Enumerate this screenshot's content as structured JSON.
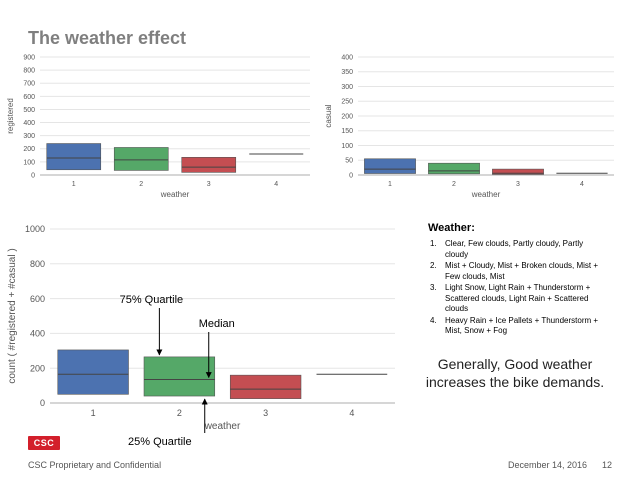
{
  "slide": {
    "title": "The weather effect",
    "legend_title": "Weather:",
    "legend_items": [
      {
        "num": "1.",
        "text": "Clear, Few clouds, Partly cloudy, Partly cloudy"
      },
      {
        "num": "2.",
        "text": "Mist + Cloudy, Mist + Broken clouds, Mist + Few clouds, Mist"
      },
      {
        "num": "3.",
        "text": "Light Snow, Light Rain + Thunderstorm + Scattered clouds, Light Rain + Scattered clouds"
      },
      {
        "num": "4.",
        "text": "Heavy Rain + Ice Pallets + Thunderstorm + Mist, Snow + Fog"
      }
    ],
    "summary": "Generally, Good weather increases the bike demands.",
    "logo_text": "CSC",
    "footer_left": "CSC Proprietary and Confidential",
    "footer_date": "December 14, 2016",
    "footer_page": "12"
  },
  "colors": {
    "blue": "#4c72b0",
    "green": "#55a868",
    "red": "#c44e52",
    "gray": "#8c8c8c",
    "grid": "#e5e5e5"
  },
  "chart_data": [
    {
      "id": "registered",
      "type": "box",
      "title": "",
      "xlabel": "weather",
      "ylabel": "registered",
      "categories": [
        "1",
        "2",
        "3",
        "4"
      ],
      "ylim": [
        0,
        900
      ],
      "yticks": [
        0,
        100,
        200,
        300,
        400,
        500,
        600,
        700,
        800,
        900
      ],
      "boxes": [
        {
          "q1": 40,
          "median": 130,
          "q3": 240
        },
        {
          "q1": 35,
          "median": 115,
          "q3": 210
        },
        {
          "q1": 20,
          "median": 60,
          "q3": 135
        },
        {
          "q1": 160,
          "median": 160,
          "q3": 160
        }
      ]
    },
    {
      "id": "casual",
      "type": "box",
      "title": "",
      "xlabel": "weather",
      "ylabel": "casual",
      "categories": [
        "1",
        "2",
        "3",
        "4"
      ],
      "ylim": [
        0,
        400
      ],
      "yticks": [
        0,
        50,
        100,
        150,
        200,
        250,
        300,
        350,
        400
      ],
      "boxes": [
        {
          "q1": 5,
          "median": 20,
          "q3": 55
        },
        {
          "q1": 4,
          "median": 14,
          "q3": 40
        },
        {
          "q1": 2,
          "median": 6,
          "q3": 20
        },
        {
          "q1": 6,
          "median": 6,
          "q3": 6
        }
      ]
    },
    {
      "id": "total",
      "type": "box",
      "title": "",
      "xlabel": "weather",
      "ylabel": "count ( #registered + #casual )",
      "categories": [
        "1",
        "2",
        "3",
        "4"
      ],
      "ylim": [
        0,
        1000
      ],
      "yticks": [
        0,
        200,
        400,
        600,
        800,
        1000
      ],
      "boxes": [
        {
          "q1": 50,
          "median": 165,
          "q3": 305
        },
        {
          "q1": 40,
          "median": 135,
          "q3": 265
        },
        {
          "q1": 25,
          "median": 80,
          "q3": 160
        },
        {
          "q1": 165,
          "median": 165,
          "q3": 165
        }
      ],
      "annotations": [
        {
          "text": "75% Quartile",
          "target": "q3",
          "category_index": 1
        },
        {
          "text": "Median",
          "target": "median",
          "category_index": 1
        },
        {
          "text": "25% Quartile",
          "target": "q1",
          "category_index": 1
        }
      ]
    }
  ]
}
